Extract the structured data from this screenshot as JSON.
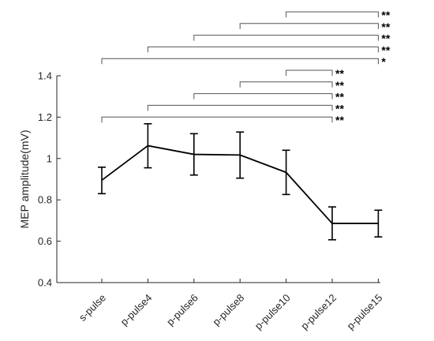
{
  "chart_data": {
    "type": "line",
    "title": "",
    "xlabel": "",
    "ylabel": "MEP amplitude(mV)",
    "ylim": [
      0.4,
      1.4
    ],
    "yticks": [
      "0.4",
      "0.6",
      "0.8",
      "1",
      "1.2",
      "1.4"
    ],
    "ytick_values": [
      0.4,
      0.6,
      0.8,
      1.0,
      1.2,
      1.4
    ],
    "categories": [
      "s-pulse",
      "p-pulse4",
      "p-pulse6",
      "p-pulse8",
      "p-pulse10",
      "p-pulse12",
      "p-pulse15"
    ],
    "series": [
      {
        "values": [
          0.895,
          1.062,
          1.02,
          1.017,
          0.933,
          0.686,
          0.686
        ],
        "error_upper": [
          0.958,
          1.168,
          1.12,
          1.128,
          1.04,
          0.766,
          0.75
        ],
        "error_lower": [
          0.83,
          0.955,
          0.92,
          0.905,
          0.826,
          0.607,
          0.621
        ],
        "color": "#000000"
      }
    ],
    "significance": [
      {
        "from": 4,
        "to": 6,
        "label": "**"
      },
      {
        "from": 3,
        "to": 6,
        "label": "**"
      },
      {
        "from": 2,
        "to": 6,
        "label": "**"
      },
      {
        "from": 1,
        "to": 6,
        "label": "**"
      },
      {
        "from": 0,
        "to": 6,
        "label": "*"
      },
      {
        "from": 4,
        "to": 5,
        "label": "**"
      },
      {
        "from": 3,
        "to": 5,
        "label": "**"
      },
      {
        "from": 2,
        "to": 5,
        "label": "**"
      },
      {
        "from": 1,
        "to": 5,
        "label": "**"
      },
      {
        "from": 0,
        "to": 5,
        "label": "**"
      }
    ]
  }
}
